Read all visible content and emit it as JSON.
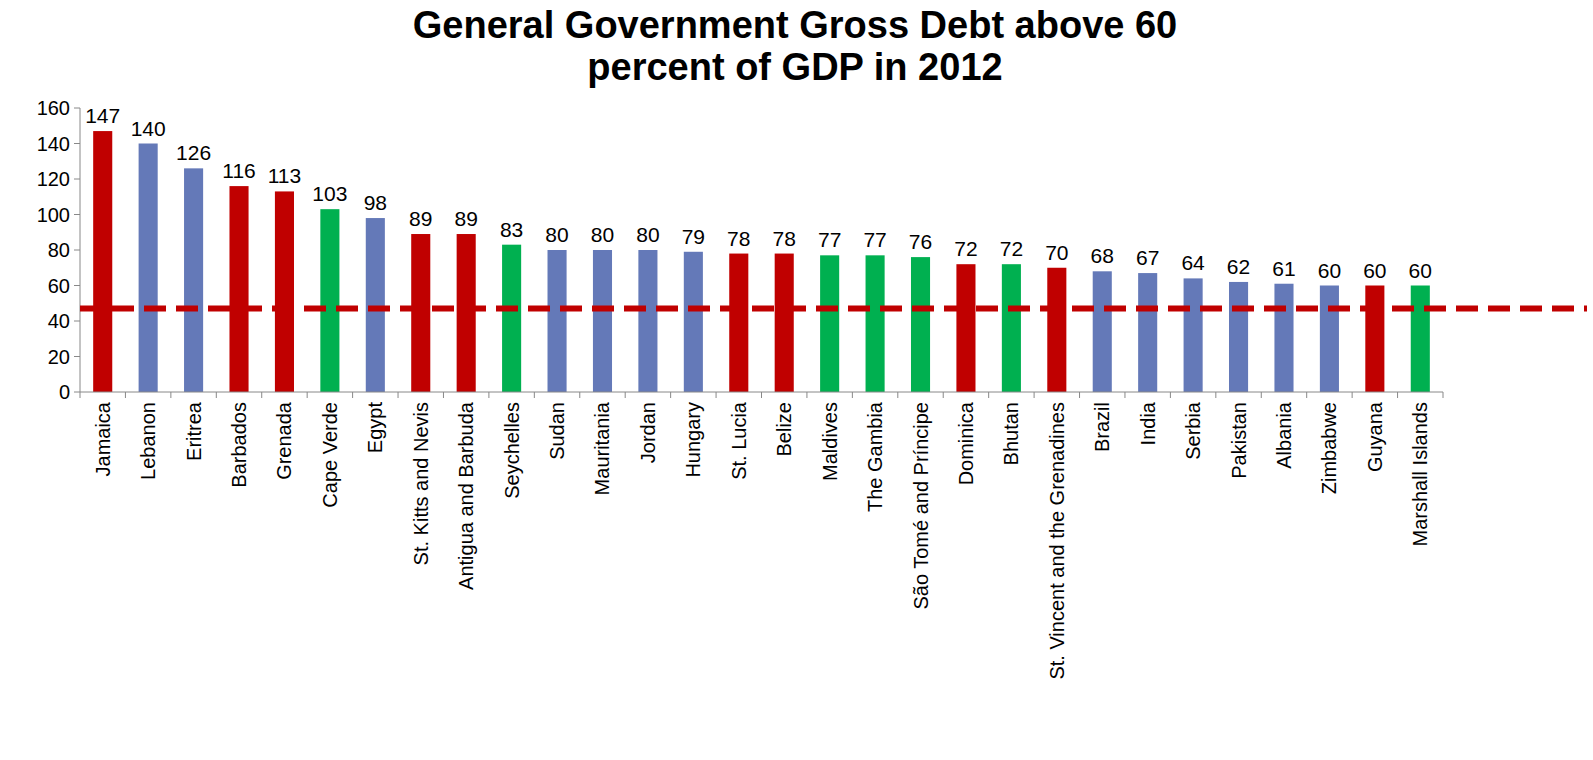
{
  "chart_data": {
    "type": "bar",
    "title": "General Government Gross Debt above 60 percent of GDP in 2012",
    "categories": [
      "Jamaica",
      "Lebanon",
      "Eritrea",
      "Barbados",
      "Grenada",
      "Cape Verde",
      "Egypt",
      "St. Kitts and Nevis",
      "Antigua and Barbuda",
      "Seychelles",
      "Sudan",
      "Mauritania",
      "Jordan",
      "Hungary",
      "St. Lucia",
      "Belize",
      "Maldives",
      "The Gambia",
      "São Tomé and Príncipe",
      "Dominica",
      "Bhutan",
      "St. Vincent and the Grenadines",
      "Brazil",
      "India",
      "Serbia",
      "Pakistan",
      "Albania",
      "Zimbabwe",
      "Guyana",
      "Marshall Islands"
    ],
    "values": [
      147,
      140,
      126,
      116,
      113,
      103,
      98,
      89,
      89,
      83,
      80,
      80,
      80,
      79,
      78,
      78,
      77,
      77,
      76,
      72,
      72,
      70,
      68,
      67,
      64,
      62,
      61,
      60,
      60,
      60
    ],
    "colors": [
      "#c00000",
      "#6479b8",
      "#6479b8",
      "#c00000",
      "#c00000",
      "#00b050",
      "#6479b8",
      "#c00000",
      "#c00000",
      "#00b050",
      "#6479b8",
      "#6479b8",
      "#6479b8",
      "#6479b8",
      "#c00000",
      "#c00000",
      "#00b050",
      "#00b050",
      "#00b050",
      "#c00000",
      "#00b050",
      "#c00000",
      "#6479b8",
      "#6479b8",
      "#6479b8",
      "#6479b8",
      "#6479b8",
      "#6479b8",
      "#c00000",
      "#00b050"
    ],
    "reference_line": 47,
    "ylim": [
      0,
      160
    ],
    "yticks": [
      0,
      20,
      40,
      60,
      80,
      100,
      120,
      140,
      160
    ],
    "data_labels": true,
    "grid": false
  }
}
